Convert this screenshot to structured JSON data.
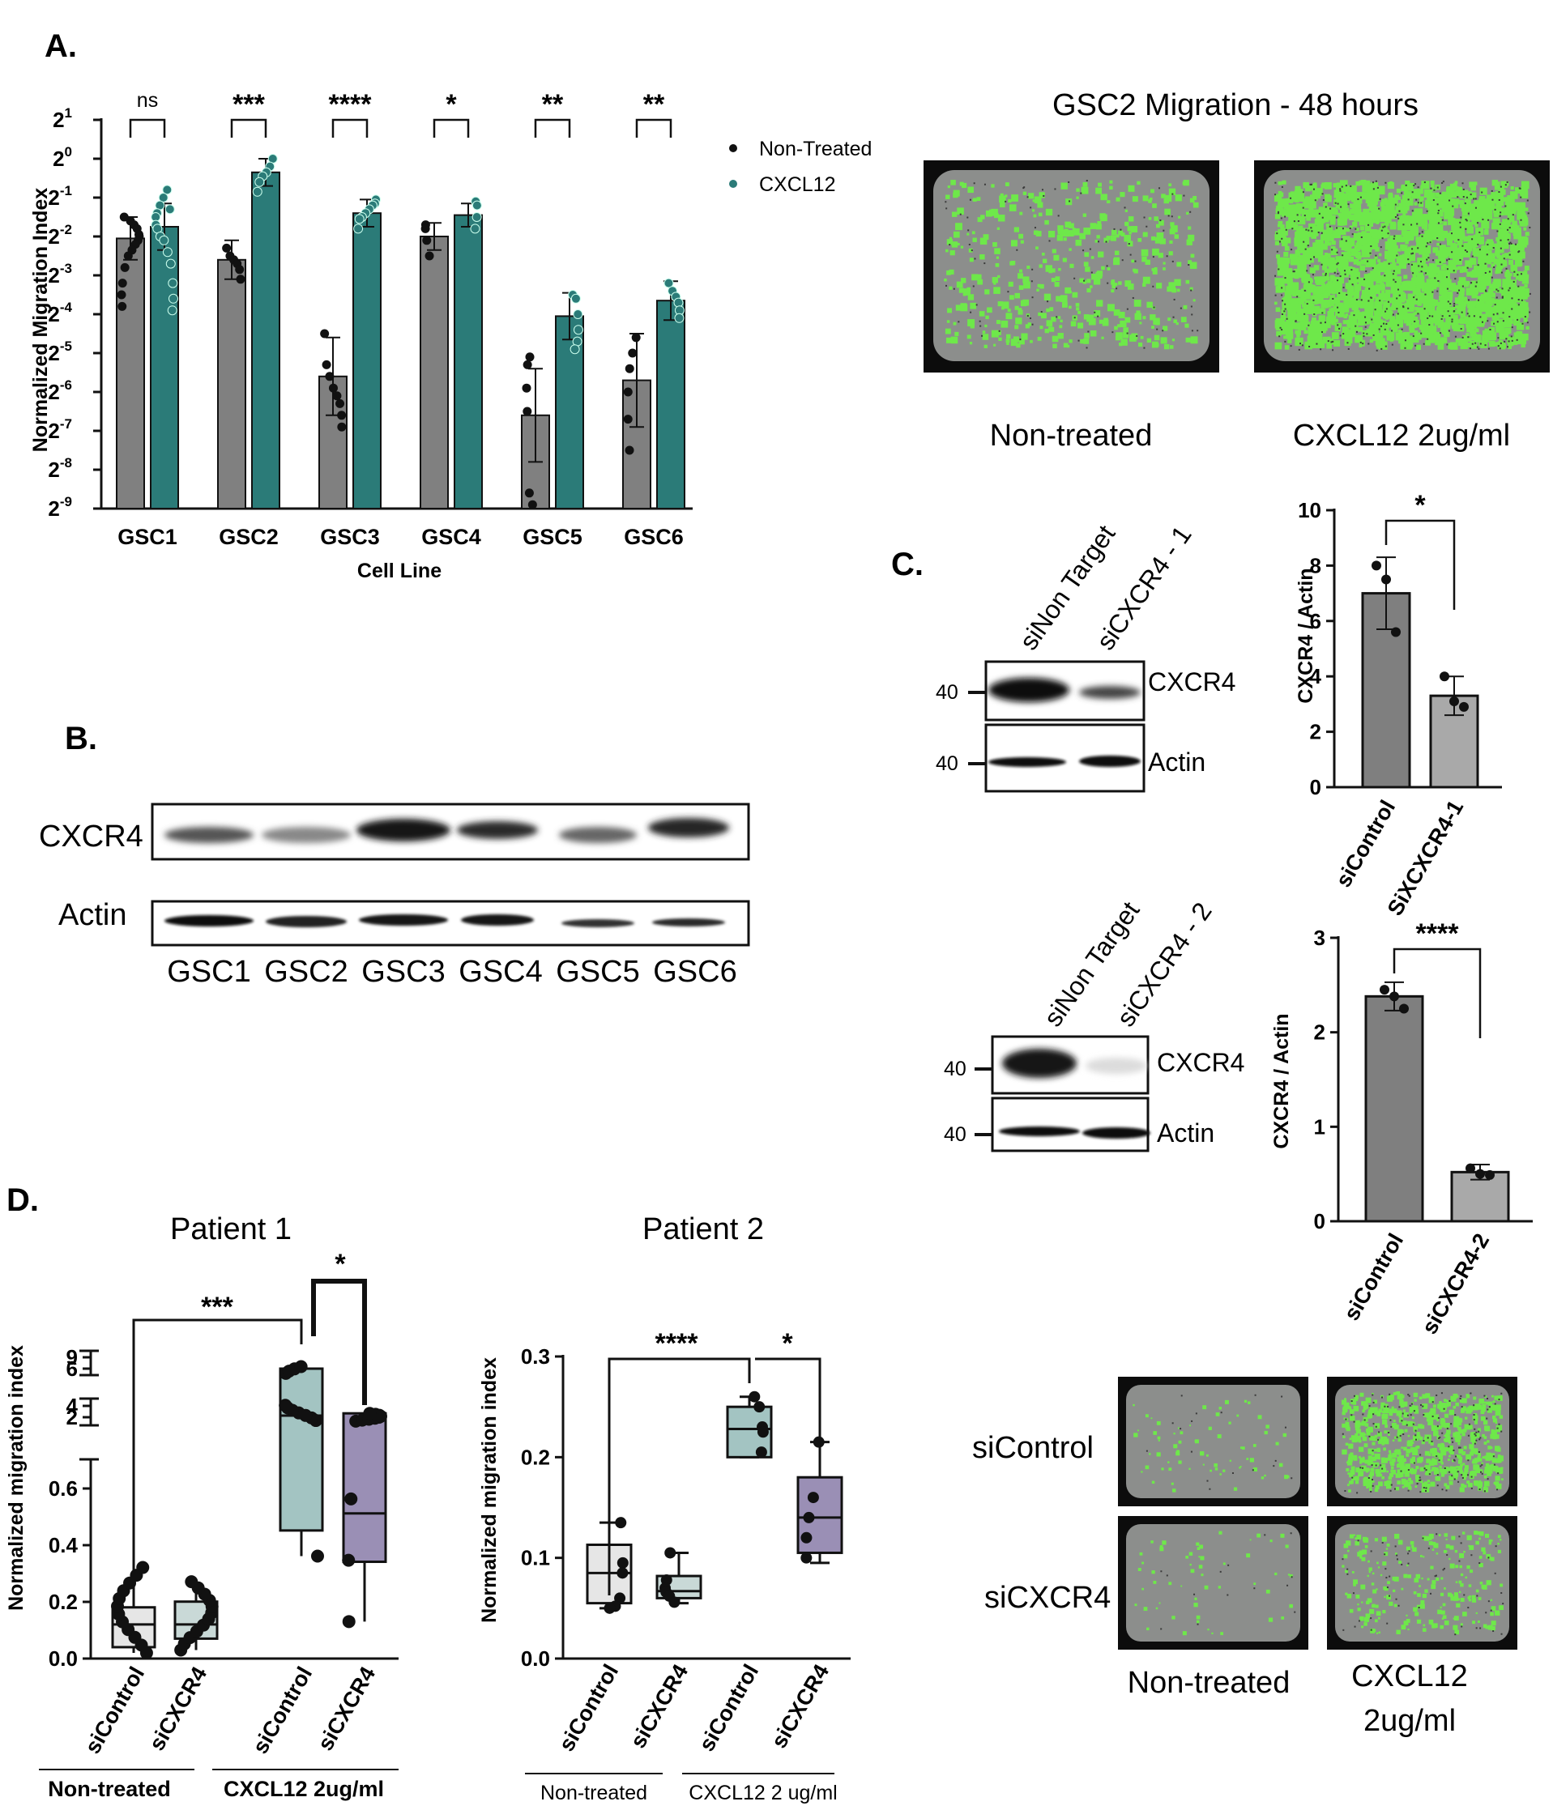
{
  "panel_labels": {
    "a": "A.",
    "b": "B.",
    "c": "C.",
    "d": "D."
  },
  "panel_b": {
    "row_labels": [
      "CXCR4",
      "Actin"
    ],
    "lanes": [
      "GSC1",
      "GSC2",
      "GSC3",
      "GSC4",
      "GSC5",
      "GSC6"
    ]
  },
  "migration_images": {
    "title": "GSC2 Migration - 48 hours",
    "captions": [
      "Non-treated",
      "CXCL12 2ug/ml"
    ]
  },
  "panel_c": {
    "blot1": {
      "lanes": [
        "siNon Target",
        "siCXCR4 - 1"
      ],
      "bands": [
        "CXCR4",
        "Actin"
      ],
      "marker": "40"
    },
    "blot2": {
      "lanes": [
        "siNon Target",
        "siCXCR4 - 2"
      ],
      "bands": [
        "CXCR4",
        "Actin"
      ],
      "marker": "40"
    }
  },
  "panel_d_images": {
    "rows": [
      "siControl",
      "siCXCR4"
    ],
    "cols": [
      "Non-treated",
      "CXCL12",
      "2ug/ml"
    ]
  },
  "chart_data": [
    {
      "id": "A",
      "type": "bar",
      "ylabel": "Normalized Migration Index",
      "xlabel": "Cell Line",
      "yscale": "log2",
      "yticks": [
        "2^1",
        "2^0",
        "2^-1",
        "2^-2",
        "2^-3",
        "2^-4",
        "2^-5",
        "2^-6",
        "2^-7",
        "2^-8",
        "2^-9"
      ],
      "ylim": [
        -9,
        1
      ],
      "categories": [
        "GSC1",
        "GSC2",
        "GSC3",
        "GSC4",
        "GSC5",
        "GSC6"
      ],
      "legend_position": "top-right",
      "series": [
        {
          "name": "Non-Treated",
          "color": "#808080",
          "mean_log2": [
            -2.05,
            -2.6,
            -5.6,
            -2.0,
            -6.6,
            -5.7
          ],
          "err_log2": [
            0.55,
            0.5,
            1.0,
            0.35,
            1.2,
            1.2
          ]
        },
        {
          "name": "CXCL12",
          "color": "#2b7b78",
          "mean_log2": [
            -1.75,
            -0.35,
            -1.4,
            -1.45,
            -4.05,
            -3.65
          ],
          "err_log2": [
            0.6,
            0.35,
            0.35,
            0.3,
            0.6,
            0.5
          ]
        }
      ],
      "points_log2": [
        [
          [
            -1.6,
            -1.7,
            -1.8,
            -1.95,
            -2.0,
            -2.1,
            -2.2,
            -2.35,
            -2.5,
            -2.8,
            -3.2,
            -3.5,
            -3.8,
            -1.5
          ],
          [
            -0.8,
            -1.0,
            -1.2,
            -1.4,
            -1.5,
            -1.7,
            -1.8,
            -2.0,
            -2.1,
            -2.4,
            -2.7,
            -3.2,
            -3.6,
            -3.9,
            -1.3
          ]
        ],
        [
          [
            -2.3,
            -2.5,
            -2.6,
            -2.7,
            -2.85,
            -3.1
          ],
          [
            0.0,
            -0.2,
            -0.35,
            -0.45,
            -0.6,
            -0.85
          ]
        ],
        [
          [
            -4.5,
            -5.3,
            -5.6,
            -5.9,
            -6.1,
            -6.3,
            -6.6,
            -6.9
          ],
          [
            -1.05,
            -1.15,
            -1.2,
            -1.3,
            -1.4,
            -1.5,
            -1.55,
            -1.8
          ]
        ],
        [
          [
            -1.7,
            -1.8,
            -2.1,
            -2.5
          ],
          [
            -1.1,
            -1.2,
            -1.5,
            -1.8
          ]
        ],
        [
          [
            -5.1,
            -5.3,
            -5.9,
            -6.5,
            -8.6,
            -8.9
          ],
          [
            -3.5,
            -3.6,
            -4.0,
            -4.4,
            -4.7,
            -4.9
          ]
        ],
        [
          [
            -4.6,
            -5.0,
            -5.4,
            -6.0,
            -6.7,
            -7.5
          ],
          [
            -3.2,
            -3.4,
            -3.55,
            -3.7,
            -3.9,
            -4.1
          ]
        ]
      ],
      "significance": [
        "ns",
        "***",
        "****",
        "*",
        "**",
        "**"
      ]
    },
    {
      "id": "C1",
      "type": "bar",
      "ylabel": "CXCR4 / Actin",
      "categories": [
        "siControl",
        "SiXCXCR4-1"
      ],
      "ylim": [
        0,
        10
      ],
      "yticks": [
        0,
        2,
        4,
        6,
        8,
        10
      ],
      "values": [
        7.0,
        3.3
      ],
      "errors": [
        1.3,
        0.7
      ],
      "points": [
        [
          8.0,
          7.5,
          5.6
        ],
        [
          4.0,
          3.1,
          2.9
        ]
      ],
      "colors": [
        "#7f7f7f",
        "#a9a9a9"
      ],
      "significance": "*"
    },
    {
      "id": "C2",
      "type": "bar",
      "ylabel": "CXCR4 / Actin",
      "categories": [
        "siControl",
        "siCXCR4-2"
      ],
      "ylim": [
        0,
        3
      ],
      "yticks": [
        0,
        1,
        2,
        3
      ],
      "values": [
        2.38,
        0.52
      ],
      "errors": [
        0.15,
        0.08
      ],
      "points": [
        [
          2.45,
          2.38,
          2.25
        ],
        [
          0.56,
          0.5,
          0.49
        ]
      ],
      "colors": [
        "#7f7f7f",
        "#a9a9a9"
      ],
      "significance": "****"
    },
    {
      "id": "D1",
      "type": "box",
      "title": "Patient 1",
      "ylabel": "Normalized migration index",
      "yscale": "broken",
      "yticks": [
        "0.0",
        "0.2",
        "0.4",
        "0.6",
        "2",
        "4",
        "6",
        "9"
      ],
      "categories": [
        "siControl",
        "siCXCR4",
        "siControl",
        "siCXCR4"
      ],
      "groups": [
        "Non-treated",
        "CXCL12 2ug/ml"
      ],
      "boxes": [
        {
          "min": 0.02,
          "q1": 0.04,
          "median": 0.12,
          "q3": 0.18,
          "max": 0.32,
          "color": "#e6e6e6"
        },
        {
          "min": 0.03,
          "q1": 0.07,
          "median": 0.12,
          "q3": 0.2,
          "max": 0.27,
          "color": "#c9d9d7"
        },
        {
          "min": 0.36,
          "q1": 0.45,
          "median": 2.0,
          "q3": 6.0,
          "max": 6.5,
          "color": "#a3c4c2"
        },
        {
          "min": 0.13,
          "q1": 0.34,
          "median": 0.51,
          "q3": 2.5,
          "max": 2.5,
          "color": "#9a8fb5"
        }
      ],
      "significance": [
        {
          "pair": [
            0,
            2
          ],
          "label": "***"
        },
        {
          "pair": [
            2,
            3
          ],
          "label": "*"
        }
      ]
    },
    {
      "id": "D2",
      "type": "box",
      "title": "Patient 2",
      "ylabel": "Normalized migration index",
      "ylim": [
        0,
        0.3
      ],
      "yticks": [
        "0.0",
        "0.1",
        "0.2",
        "0.3"
      ],
      "categories": [
        "siControl",
        "siCXCR4",
        "siControl",
        "siCXCR4"
      ],
      "groups": [
        "Non-treated",
        "CXCL12 2 ug/ml"
      ],
      "boxes": [
        {
          "min": 0.05,
          "q1": 0.055,
          "median": 0.085,
          "q3": 0.113,
          "max": 0.135,
          "points": [
            0.135,
            0.095,
            0.085,
            0.06,
            0.052,
            0.05
          ],
          "color": "#e6e6e6"
        },
        {
          "min": 0.055,
          "q1": 0.06,
          "median": 0.067,
          "q3": 0.082,
          "max": 0.105,
          "points": [
            0.105,
            0.078,
            0.07,
            0.066,
            0.062,
            0.056
          ],
          "color": "#c9d9d7"
        },
        {
          "min": 0.2,
          "q1": 0.2,
          "median": 0.228,
          "q3": 0.25,
          "max": 0.26,
          "points": [
            0.26,
            0.25,
            0.23,
            0.225,
            0.205
          ],
          "color": "#a3c4c2"
        },
        {
          "min": 0.095,
          "q1": 0.105,
          "median": 0.14,
          "q3": 0.18,
          "max": 0.215,
          "points": [
            0.215,
            0.16,
            0.14,
            0.12,
            0.1
          ],
          "color": "#9a8fb5"
        }
      ],
      "significance": [
        {
          "pair": [
            0,
            2
          ],
          "label": "****"
        },
        {
          "pair": [
            2,
            3
          ],
          "label": "*"
        }
      ]
    }
  ]
}
